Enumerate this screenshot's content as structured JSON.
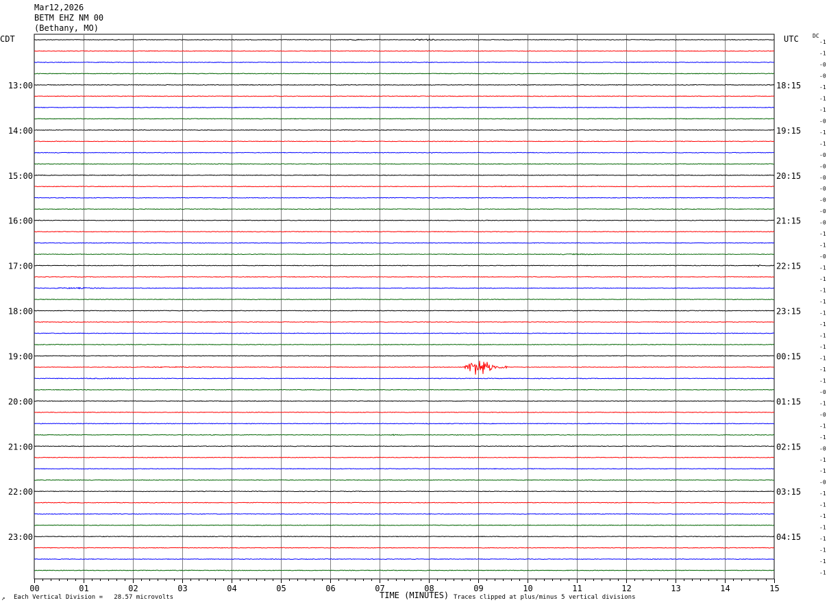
{
  "header": {
    "date": "Mar12,2026",
    "station": "BETM EHZ NM 00",
    "location": "(Bethany, MO)"
  },
  "left_tz": "CDT",
  "right_tz": "UTC",
  "dc_label": "DC",
  "footer": {
    "scale_note": "Each Vertical Division =   28.57 microvolts",
    "clip_note": "Traces clipped at plus/minus 5 vertical divisions",
    "corner_mark": "↗"
  },
  "colors": {
    "black": "#000000",
    "red": "#ff0000",
    "blue": "#0000ff",
    "green": "#006400",
    "grid": "#808080"
  },
  "chart_data": {
    "type": "line",
    "title": "",
    "xlabel": "TIME (MINUTES)",
    "ylabel": "",
    "xlim": [
      0,
      15
    ],
    "x_ticks": [
      "00",
      "01",
      "02",
      "03",
      "04",
      "05",
      "06",
      "07",
      "08",
      "09",
      "10",
      "11",
      "12",
      "13",
      "14",
      "15"
    ],
    "trace_count": 48,
    "trace_minutes": 15,
    "trace_colors": [
      "black",
      "red",
      "blue",
      "green"
    ],
    "left_hour_labels": [
      "13:00",
      "14:00",
      "15:00",
      "16:00",
      "17:00",
      "18:00",
      "19:00",
      "20:00",
      "21:00",
      "22:00",
      "23:00"
    ],
    "right_hour_labels": [
      "18:15",
      "19:15",
      "20:15",
      "21:15",
      "22:15",
      "23:15",
      "00:15",
      "01:15",
      "02:15",
      "03:15",
      "04:15"
    ],
    "dc_offsets": [
      "-1",
      "-1",
      "-0",
      "-0",
      "-1",
      "-1",
      "-1",
      "-0",
      "-1",
      "-1",
      "-0",
      "-0",
      "-0",
      "-0",
      "-0",
      "-0",
      "-0",
      "-1",
      "-1",
      "-0",
      "-1",
      "-1",
      "-1",
      "-1",
      "-1",
      "-1",
      "-1",
      "-1",
      "-1",
      "-1",
      "-1",
      "-0",
      "-1",
      "-0",
      "-1",
      "-1",
      "-0",
      "-1",
      "-1",
      "-0",
      "-1",
      "-1",
      "-1",
      "-1",
      "-1",
      "-1",
      "-1",
      "-1"
    ],
    "events": [
      {
        "trace": 0,
        "start_min": 6.3,
        "end_min": 6.8,
        "amplitude_div": 0.5
      },
      {
        "trace": 0,
        "start_min": 7.6,
        "end_min": 8.5,
        "amplitude_div": 0.6
      },
      {
        "trace": 10,
        "start_min": 8.0,
        "end_min": 8.1,
        "amplitude_div": 0.6
      },
      {
        "trace": 13,
        "start_min": 9.4,
        "end_min": 9.8,
        "amplitude_div": 0.4
      },
      {
        "trace": 19,
        "start_min": 10.0,
        "end_min": 13.0,
        "amplitude_div": 0.3
      },
      {
        "trace": 20,
        "start_min": 14.6,
        "end_min": 14.9,
        "amplitude_div": 0.6
      },
      {
        "trace": 22,
        "start_min": 0.0,
        "end_min": 2.5,
        "amplitude_div": 0.4
      },
      {
        "trace": 29,
        "start_min": 1.2,
        "end_min": 5.6,
        "amplitude_div": 0.3
      },
      {
        "trace": 29,
        "start_min": 8.7,
        "end_min": 9.6,
        "amplitude_div": 5.0
      },
      {
        "trace": 30,
        "start_min": 0.4,
        "end_min": 3.5,
        "amplitude_div": 0.3
      },
      {
        "trace": 34,
        "start_min": 7.9,
        "end_min": 8.1,
        "amplitude_div": 0.4
      },
      {
        "trace": 35,
        "start_min": 7.2,
        "end_min": 7.5,
        "amplitude_div": 0.4
      },
      {
        "trace": 38,
        "start_min": 4.5,
        "end_min": 6.5,
        "amplitude_div": 0.2
      },
      {
        "trace": 41,
        "start_min": 12.4,
        "end_min": 12.9,
        "amplitude_div": 0.3
      }
    ]
  }
}
